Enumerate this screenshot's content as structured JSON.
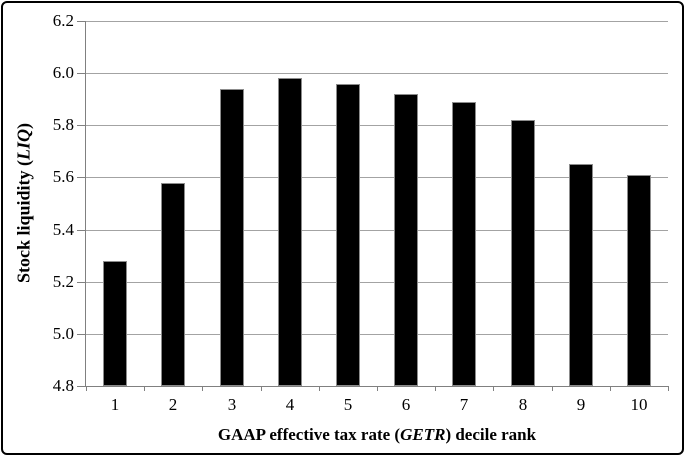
{
  "chart_data": {
    "type": "bar",
    "categories": [
      "1",
      "2",
      "3",
      "4",
      "5",
      "6",
      "7",
      "8",
      "9",
      "10"
    ],
    "values": [
      5.28,
      5.58,
      5.94,
      5.98,
      5.96,
      5.92,
      5.89,
      5.82,
      5.65,
      5.61
    ],
    "title": "",
    "xlabel": "GAAP effective tax rate (GETR) decile rank",
    "ylabel": "Stock liquidity (LIQ)",
    "xlabel_parts": {
      "prefix": "GAAP effective tax rate (",
      "italic": "GETR",
      "suffix": ") decile rank"
    },
    "ylabel_parts": {
      "prefix": "Stock liquidity (",
      "italic": "LIQ",
      "suffix": ")"
    },
    "ylim": [
      4.8,
      6.2
    ],
    "ytick_labels": [
      "4.8",
      "5.0",
      "5.2",
      "5.4",
      "5.6",
      "5.8",
      "6.0",
      "6.2"
    ],
    "grid": true,
    "legend": "none",
    "colors": {
      "bar_fill": "#000000",
      "bar_border": "#8c8c8c",
      "gridline": "#a3a3a3",
      "axis": "#808080",
      "figure_border": "#000000",
      "background": "#ffffff"
    }
  }
}
